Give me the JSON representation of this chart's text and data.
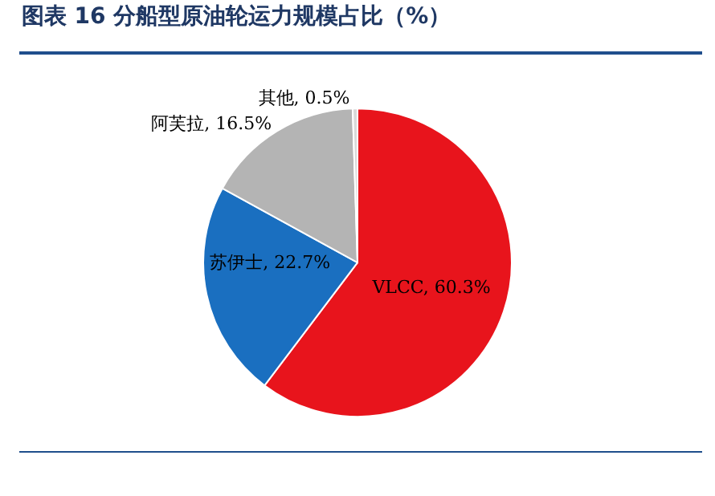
{
  "chart_data": {
    "type": "pie",
    "title": "图表 16 分船型原油轮运力规模占比（%）",
    "categories": [
      "VLCC",
      "苏伊士",
      "阿芙拉",
      "其他"
    ],
    "values": [
      60.3,
      22.7,
      16.5,
      0.5
    ],
    "colors": [
      "#e8141c",
      "#1a6fc0",
      "#b4b4b4",
      "#d9d9d9"
    ],
    "value_labels": [
      "60.3%",
      "22.7%",
      "16.5%",
      "0.5%"
    ],
    "legend": false
  }
}
